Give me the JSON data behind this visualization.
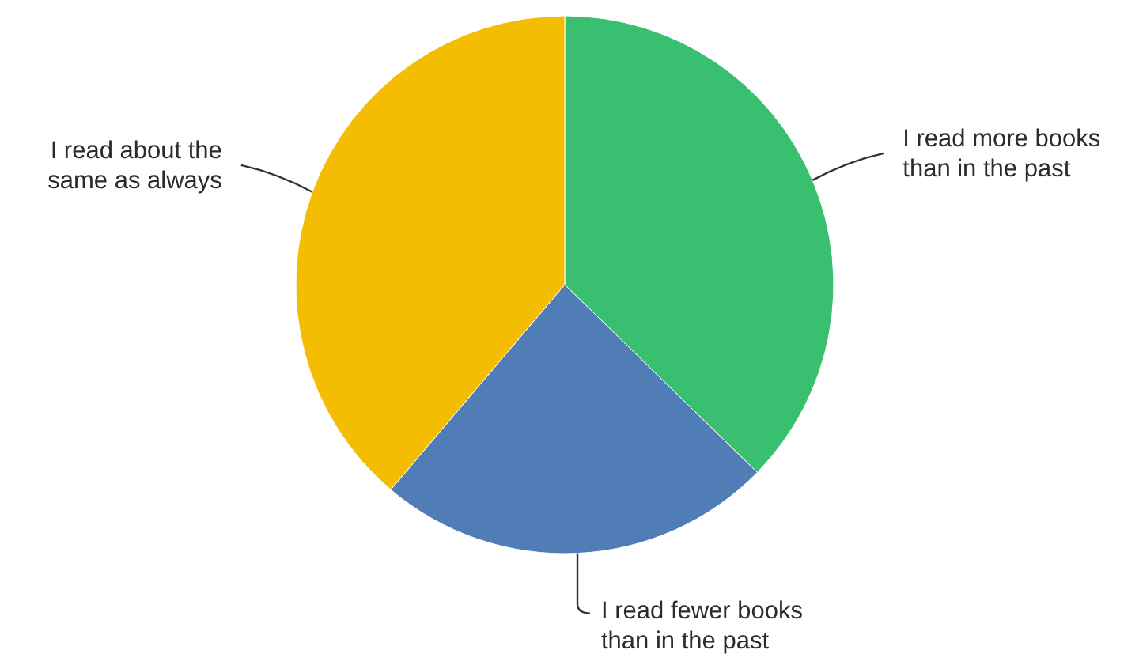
{
  "chart_data": {
    "type": "pie",
    "categories": [
      "I read more books than in the past",
      "I read fewer books than in the past",
      "I read about the same as always"
    ],
    "values": [
      37.3,
      23.9,
      38.8
    ],
    "colors": [
      "#38bf6f",
      "#517db6",
      "#f5bd02"
    ]
  }
}
